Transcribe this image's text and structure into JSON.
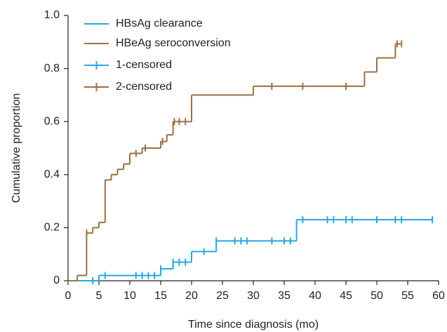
{
  "chart_data": {
    "type": "step",
    "x_label": "Time since diagnosis (mo)",
    "y_label": "Cumulative proportion",
    "xlim": [
      0,
      60
    ],
    "xticks": [
      0,
      5,
      10,
      15,
      20,
      25,
      30,
      35,
      40,
      45,
      50,
      55,
      60
    ],
    "ylim": [
      0,
      1
    ],
    "yticks": [
      0,
      0.2,
      0.4,
      0.6,
      0.8,
      {
        "value": 1,
        "label": "1.0"
      }
    ],
    "legend": "upper left",
    "series": [
      {
        "name": "HBsAg clearance",
        "color": "#29a9df",
        "style": "step",
        "x": [
          0,
          5,
          15,
          17,
          20,
          24,
          37,
          59
        ],
        "values": [
          0,
          0.02,
          0.045,
          0.07,
          0.11,
          0.15,
          0.23,
          0.23
        ]
      },
      {
        "name": "HBeAg seroconversion",
        "color": "#9b7043",
        "style": "step",
        "x": [
          0,
          1.5,
          3,
          4,
          5,
          6,
          7,
          8,
          9,
          10,
          12,
          15,
          16,
          17,
          20,
          30,
          48,
          50,
          53,
          54
        ],
        "values": [
          0,
          0.02,
          0.18,
          0.2,
          0.22,
          0.38,
          0.4,
          0.42,
          0.44,
          0.48,
          0.5,
          0.525,
          0.55,
          0.6,
          0.7,
          0.733,
          0.787,
          0.84,
          0.893,
          0.893
        ]
      },
      {
        "name": "1-censored",
        "color": "#29a9df",
        "style": "censor",
        "x": [
          4,
          6,
          11,
          12,
          13,
          14,
          15,
          17,
          18,
          19,
          22,
          24,
          27,
          28,
          29,
          33,
          35,
          36,
          38,
          42,
          43,
          45,
          46,
          50,
          53,
          54,
          59
        ],
        "values": [
          0,
          0.02,
          0.02,
          0.02,
          0.02,
          0.02,
          0.045,
          0.07,
          0.07,
          0.07,
          0.11,
          0.15,
          0.15,
          0.15,
          0.15,
          0.15,
          0.15,
          0.15,
          0.23,
          0.23,
          0.23,
          0.23,
          0.23,
          0.23,
          0.23,
          0.23,
          0.23
        ]
      },
      {
        "name": "2-censored",
        "color": "#9b7043",
        "style": "censor",
        "x": [
          3,
          11,
          12.5,
          15.3,
          17.2,
          18,
          19,
          33,
          38,
          45,
          53.3,
          54
        ],
        "values": [
          0.18,
          0.48,
          0.5,
          0.525,
          0.6,
          0.6,
          0.6,
          0.733,
          0.733,
          0.733,
          0.893,
          0.893
        ]
      }
    ]
  }
}
